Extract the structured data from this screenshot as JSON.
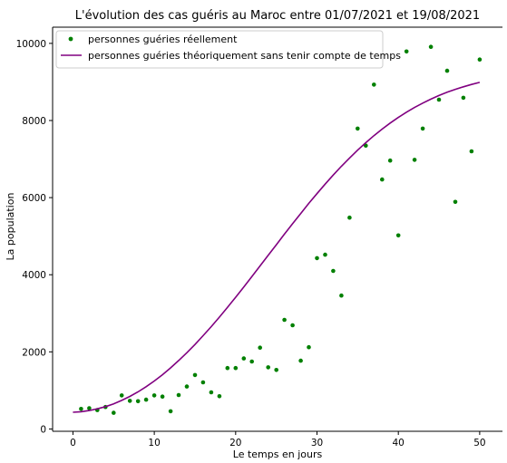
{
  "chart_data": {
    "type": "scatter",
    "title": "L'évolution des cas guéris au Maroc entre 01/07/2021 et 19/08/2021",
    "xlabel": "Le temps en jours",
    "ylabel": "La population",
    "xlim": [
      -2.5,
      52.8
    ],
    "ylim": [
      -60,
      10420
    ],
    "xticks": [
      "0",
      "10",
      "20",
      "30",
      "40",
      "50"
    ],
    "yticks": [
      "0",
      "2000",
      "4000",
      "6000",
      "8000",
      "10000"
    ],
    "legend_position": "top-left",
    "grid": false,
    "series": [
      {
        "name": "personnes guéries réellement",
        "kind": "scatter",
        "color": "#008000",
        "x": [
          1,
          2,
          3,
          4,
          5,
          6,
          7,
          8,
          9,
          10,
          11,
          12,
          13,
          14,
          15,
          16,
          17,
          18,
          19,
          20,
          21,
          22,
          23,
          24,
          25,
          26,
          27,
          28,
          29,
          30,
          31,
          32,
          33,
          34,
          35,
          36,
          37,
          38,
          39,
          40,
          41,
          42,
          43,
          44,
          45,
          46,
          47,
          48,
          49,
          50
        ],
        "y": [
          520,
          540,
          490,
          570,
          420,
          870,
          730,
          720,
          760,
          870,
          840,
          460,
          880,
          1100,
          1400,
          1210,
          950,
          850,
          1580,
          1580,
          1830,
          1750,
          2110,
          1600,
          1530,
          2830,
          2690,
          1770,
          2120,
          4430,
          4520,
          4100,
          3460,
          5480,
          7790,
          7350,
          8930,
          6470,
          6960,
          5020,
          9790,
          6980,
          7790,
          9910,
          8540,
          9290,
          5890,
          8590,
          7200,
          9580
        ]
      },
      {
        "name": "personnes guéries théoriquement sans tenir compte de temps",
        "kind": "line",
        "color": "#800080",
        "x": [
          0,
          1,
          2,
          3,
          4,
          5,
          6,
          7,
          8,
          9,
          10,
          11,
          12,
          13,
          14,
          15,
          16,
          17,
          18,
          19,
          20,
          21,
          22,
          23,
          24,
          25,
          26,
          27,
          28,
          29,
          30,
          31,
          32,
          33,
          34,
          35,
          36,
          37,
          38,
          39,
          40,
          41,
          42,
          43,
          44,
          45,
          46,
          47,
          48,
          49,
          50
        ],
        "y": [
          433,
          448,
          478,
          522,
          580,
          653,
          741,
          845,
          963,
          1097,
          1245,
          1407,
          1584,
          1774,
          1977,
          2192,
          2418,
          2655,
          2901,
          3155,
          3416,
          3683,
          3954,
          4228,
          4503,
          4779,
          5053,
          5324,
          5590,
          5851,
          6104,
          6350,
          6586,
          6812,
          7028,
          7232,
          7425,
          7607,
          7776,
          7934,
          8080,
          8215,
          8339,
          8452,
          8555,
          8648,
          8732,
          8808,
          8875,
          8935,
          8988
        ]
      }
    ]
  }
}
